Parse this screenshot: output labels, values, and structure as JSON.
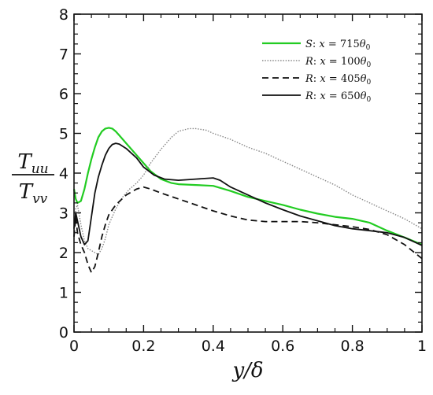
{
  "chart_data": {
    "type": "line",
    "title": "",
    "xlabel": "y/δ",
    "ylabel_numerator": "T_uu",
    "ylabel_denominator": "T_vv",
    "xlim": [
      0,
      1
    ],
    "ylim": [
      0,
      8
    ],
    "xticks": [
      "0",
      "0.2",
      "0.4",
      "0.6",
      "0.8",
      "1"
    ],
    "yticks": [
      "0",
      "1",
      "2",
      "3",
      "4",
      "5",
      "6",
      "7",
      "8"
    ],
    "grid": false,
    "legend_position": "top-right",
    "series": [
      {
        "name": "S: x = 715θ₀",
        "legend": {
          "prefix": "S",
          "number": "715"
        },
        "color": "#22cc22",
        "style": "solid",
        "x": [
          0,
          0.005,
          0.01,
          0.02,
          0.03,
          0.04,
          0.05,
          0.06,
          0.07,
          0.08,
          0.09,
          0.1,
          0.11,
          0.12,
          0.13,
          0.15,
          0.18,
          0.2,
          0.22,
          0.25,
          0.28,
          0.3,
          0.35,
          0.4,
          0.45,
          0.5,
          0.55,
          0.6,
          0.65,
          0.7,
          0.75,
          0.8,
          0.85,
          0.9,
          0.95,
          1.0
        ],
        "y": [
          3.6,
          3.35,
          3.25,
          3.3,
          3.6,
          4.0,
          4.35,
          4.65,
          4.9,
          5.05,
          5.12,
          5.14,
          5.12,
          5.05,
          4.95,
          4.75,
          4.45,
          4.25,
          4.05,
          3.85,
          3.75,
          3.72,
          3.7,
          3.68,
          3.55,
          3.4,
          3.3,
          3.2,
          3.08,
          2.98,
          2.9,
          2.85,
          2.75,
          2.55,
          2.38,
          2.2
        ]
      },
      {
        "name": "R: x = 100θ₀",
        "legend": {
          "prefix": "R",
          "number": "100"
        },
        "color": "#888888",
        "style": "dotted",
        "x": [
          0,
          0.005,
          0.01,
          0.02,
          0.03,
          0.04,
          0.05,
          0.06,
          0.07,
          0.08,
          0.09,
          0.1,
          0.12,
          0.14,
          0.16,
          0.18,
          0.2,
          0.22,
          0.25,
          0.28,
          0.3,
          0.33,
          0.35,
          0.38,
          0.4,
          0.45,
          0.5,
          0.55,
          0.6,
          0.65,
          0.7,
          0.75,
          0.8,
          0.85,
          0.9,
          0.95,
          1.0
        ],
        "y": [
          2.5,
          3.1,
          3.2,
          2.7,
          2.3,
          2.1,
          2.05,
          2.0,
          1.95,
          2.1,
          2.35,
          2.7,
          3.1,
          3.4,
          3.6,
          3.75,
          3.95,
          4.25,
          4.6,
          4.9,
          5.05,
          5.12,
          5.12,
          5.08,
          5.0,
          4.85,
          4.65,
          4.5,
          4.3,
          4.1,
          3.9,
          3.7,
          3.45,
          3.25,
          3.05,
          2.85,
          2.6
        ]
      },
      {
        "name": "R: x = 405θ₀",
        "legend": {
          "prefix": "R",
          "number": "405"
        },
        "color": "#111111",
        "style": "dashed",
        "x": [
          0,
          0.005,
          0.01,
          0.02,
          0.03,
          0.04,
          0.05,
          0.06,
          0.07,
          0.08,
          0.09,
          0.1,
          0.12,
          0.15,
          0.18,
          0.2,
          0.22,
          0.25,
          0.3,
          0.35,
          0.4,
          0.45,
          0.5,
          0.55,
          0.6,
          0.65,
          0.7,
          0.75,
          0.8,
          0.85,
          0.9,
          0.95,
          1.0
        ],
        "y": [
          2.4,
          2.9,
          2.5,
          2.2,
          2.0,
          1.7,
          1.5,
          1.65,
          2.0,
          2.4,
          2.7,
          2.95,
          3.2,
          3.45,
          3.6,
          3.65,
          3.6,
          3.5,
          3.35,
          3.2,
          3.05,
          2.92,
          2.82,
          2.78,
          2.78,
          2.78,
          2.75,
          2.7,
          2.65,
          2.58,
          2.45,
          2.2,
          1.85
        ]
      },
      {
        "name": "R: x = 650θ₀",
        "legend": {
          "prefix": "R",
          "number": "650"
        },
        "color": "#111111",
        "style": "solid",
        "x": [
          0,
          0.005,
          0.01,
          0.02,
          0.03,
          0.04,
          0.05,
          0.06,
          0.07,
          0.08,
          0.09,
          0.1,
          0.11,
          0.12,
          0.13,
          0.15,
          0.18,
          0.2,
          0.23,
          0.26,
          0.3,
          0.35,
          0.4,
          0.42,
          0.45,
          0.5,
          0.55,
          0.6,
          0.65,
          0.7,
          0.75,
          0.8,
          0.85,
          0.9,
          0.95,
          1.0
        ],
        "y": [
          2.6,
          3.0,
          2.8,
          2.4,
          2.2,
          2.3,
          2.9,
          3.5,
          3.9,
          4.2,
          4.45,
          4.62,
          4.72,
          4.75,
          4.73,
          4.62,
          4.38,
          4.15,
          3.95,
          3.85,
          3.82,
          3.85,
          3.88,
          3.82,
          3.65,
          3.45,
          3.25,
          3.08,
          2.92,
          2.8,
          2.68,
          2.6,
          2.55,
          2.5,
          2.38,
          2.18
        ]
      }
    ]
  }
}
